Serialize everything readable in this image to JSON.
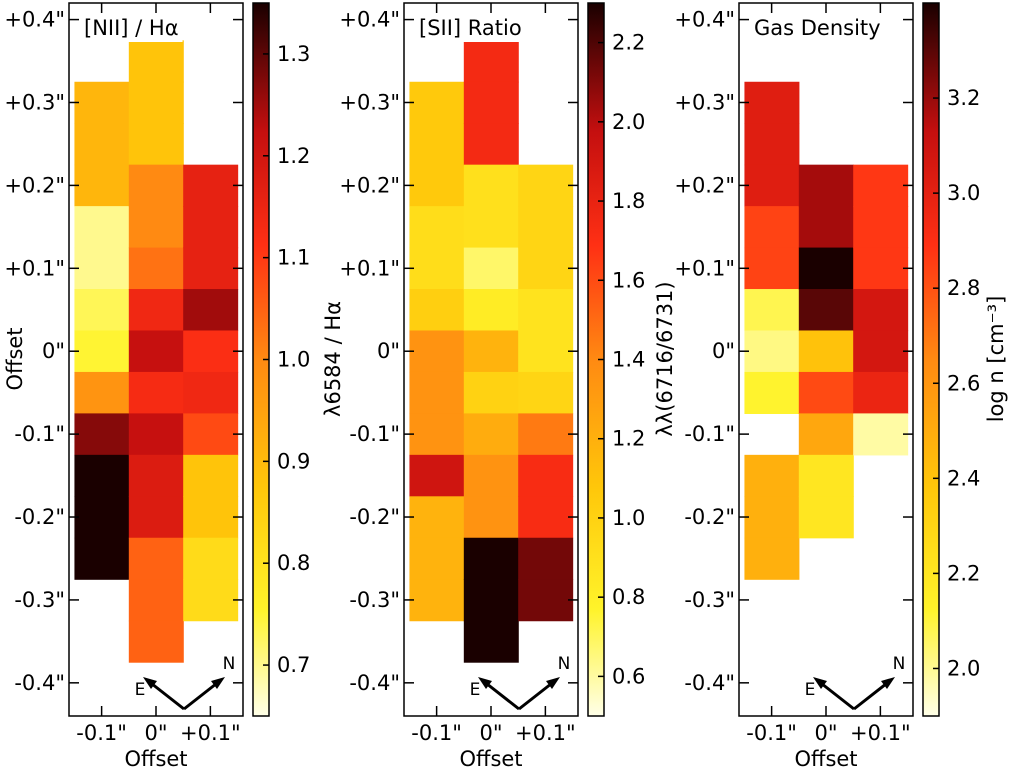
{
  "chart_data": [
    {
      "type": "heatmap",
      "title": "[NII] / Hα",
      "xlabel": "Offset",
      "ylabel": "Offset",
      "x_ticks": [
        "-0.1\"",
        "0\"",
        "+0.1\""
      ],
      "y_ticks": [
        "+0.4\"",
        "+0.3\"",
        "+0.2\"",
        "+0.1\"",
        "0\"",
        "-0.1\"",
        "-0.2\"",
        "-0.3\"",
        "-0.4\""
      ],
      "xlim": [
        -0.16,
        0.16
      ],
      "ylim": [
        -0.44,
        0.42
      ],
      "cell_width": 0.1,
      "cell_height": 0.05,
      "columns": [
        {
          "x": -0.1,
          "cells": [
            {
              "y_top": 0.325,
              "value": 0.91
            },
            {
              "y_top": 0.275,
              "value": 0.91
            },
            {
              "y_top": 0.225,
              "value": 0.91
            },
            {
              "y_top": 0.175,
              "value": 0.7
            },
            {
              "y_top": 0.125,
              "value": 0.7
            },
            {
              "y_top": 0.075,
              "value": 0.73
            },
            {
              "y_top": 0.025,
              "value": 0.75
            },
            {
              "y_top": -0.025,
              "value": 0.98
            },
            {
              "y_top": -0.075,
              "value": 1.27
            },
            {
              "y_top": -0.125,
              "value": 1.36
            },
            {
              "y_top": -0.175,
              "value": 1.36
            },
            {
              "y_top": -0.225,
              "value": 1.36
            }
          ]
        },
        {
          "x": 0.0,
          "cells": [
            {
              "y_top": 0.375,
              "value": 0.88
            },
            {
              "y_top": 0.325,
              "value": 0.88
            },
            {
              "y_top": 0.275,
              "value": 0.88
            },
            {
              "y_top": 0.225,
              "value": 1.0
            },
            {
              "y_top": 0.175,
              "value": 1.0
            },
            {
              "y_top": 0.125,
              "value": 1.03
            },
            {
              "y_top": 0.075,
              "value": 1.14
            },
            {
              "y_top": 0.025,
              "value": 1.22
            },
            {
              "y_top": -0.025,
              "value": 1.13
            },
            {
              "y_top": -0.075,
              "value": 1.22
            },
            {
              "y_top": -0.125,
              "value": 1.18
            },
            {
              "y_top": -0.175,
              "value": 1.18
            },
            {
              "y_top": -0.225,
              "value": 1.05
            },
            {
              "y_top": -0.275,
              "value": 1.05
            },
            {
              "y_top": -0.325,
              "value": 1.05
            }
          ]
        },
        {
          "x": 0.1,
          "cells": [
            {
              "y_top": 0.225,
              "value": 1.16
            },
            {
              "y_top": 0.175,
              "value": 1.16
            },
            {
              "y_top": 0.125,
              "value": 1.16
            },
            {
              "y_top": 0.075,
              "value": 1.25
            },
            {
              "y_top": 0.025,
              "value": 1.12
            },
            {
              "y_top": -0.025,
              "value": 1.14
            },
            {
              "y_top": -0.075,
              "value": 1.08
            },
            {
              "y_top": -0.125,
              "value": 0.88
            },
            {
              "y_top": -0.175,
              "value": 0.88
            },
            {
              "y_top": -0.225,
              "value": 0.82
            },
            {
              "y_top": -0.275,
              "value": 0.82
            }
          ]
        }
      ],
      "colorbar": {
        "label": "λ6584 / Hα",
        "range": [
          0.65,
          1.35
        ],
        "ticks": [
          "0.7",
          "0.8",
          "0.9",
          "1.0",
          "1.1",
          "1.2",
          "1.3"
        ]
      },
      "compass": {
        "east": "E",
        "north": "N"
      }
    },
    {
      "type": "heatmap",
      "title": "[SII] Ratio",
      "xlabel": "Offset",
      "ylabel": "",
      "x_ticks": [
        "-0.1\"",
        "0\"",
        "+0.1\""
      ],
      "y_ticks": [
        "+0.4\"",
        "+0.3\"",
        "+0.2\"",
        "+0.1\"",
        "0\"",
        "-0.1\"",
        "-0.2\"",
        "-0.3\"",
        "-0.4\""
      ],
      "xlim": [
        -0.16,
        0.16
      ],
      "ylim": [
        -0.44,
        0.42
      ],
      "cell_width": 0.1,
      "cell_height": 0.05,
      "columns": [
        {
          "x": -0.1,
          "cells": [
            {
              "y_top": 0.325,
              "value": 1.06
            },
            {
              "y_top": 0.275,
              "value": 1.06
            },
            {
              "y_top": 0.225,
              "value": 1.06
            },
            {
              "y_top": 0.175,
              "value": 0.92
            },
            {
              "y_top": 0.125,
              "value": 0.92
            },
            {
              "y_top": 0.075,
              "value": 1.02
            },
            {
              "y_top": 0.025,
              "value": 1.35
            },
            {
              "y_top": -0.025,
              "value": 1.35
            },
            {
              "y_top": -0.075,
              "value": 1.35
            },
            {
              "y_top": -0.125,
              "value": 1.92
            },
            {
              "y_top": -0.175,
              "value": 1.18
            },
            {
              "y_top": -0.225,
              "value": 1.18
            },
            {
              "y_top": -0.275,
              "value": 1.18
            }
          ]
        },
        {
          "x": 0.0,
          "cells": [
            {
              "y_top": 0.375,
              "value": 1.74
            },
            {
              "y_top": 0.325,
              "value": 1.74
            },
            {
              "y_top": 0.275,
              "value": 1.74
            },
            {
              "y_top": 0.225,
              "value": 0.9
            },
            {
              "y_top": 0.175,
              "value": 0.9
            },
            {
              "y_top": 0.125,
              "value": 0.68
            },
            {
              "y_top": 0.075,
              "value": 0.82
            },
            {
              "y_top": 0.025,
              "value": 1.18
            },
            {
              "y_top": -0.025,
              "value": 1.0
            },
            {
              "y_top": -0.075,
              "value": 1.22
            },
            {
              "y_top": -0.125,
              "value": 1.35
            },
            {
              "y_top": -0.175,
              "value": 1.35
            },
            {
              "y_top": -0.225,
              "value": 2.3
            },
            {
              "y_top": -0.275,
              "value": 2.3
            },
            {
              "y_top": -0.325,
              "value": 2.3
            }
          ]
        },
        {
          "x": 0.1,
          "cells": [
            {
              "y_top": 0.225,
              "value": 0.98
            },
            {
              "y_top": 0.175,
              "value": 0.98
            },
            {
              "y_top": 0.125,
              "value": 0.98
            },
            {
              "y_top": 0.075,
              "value": 0.88
            },
            {
              "y_top": 0.025,
              "value": 0.88
            },
            {
              "y_top": -0.025,
              "value": 0.98
            },
            {
              "y_top": -0.075,
              "value": 1.45
            },
            {
              "y_top": -0.125,
              "value": 1.72
            },
            {
              "y_top": -0.175,
              "value": 1.72
            },
            {
              "y_top": -0.225,
              "value": 2.13
            },
            {
              "y_top": -0.275,
              "value": 2.13
            }
          ]
        }
      ],
      "colorbar": {
        "label": "λλ(6716/6731)",
        "range": [
          0.5,
          2.3
        ],
        "ticks": [
          "0.6",
          "0.8",
          "1.0",
          "1.2",
          "1.4",
          "1.6",
          "1.8",
          "2.0",
          "2.2"
        ]
      },
      "compass": {
        "east": "E",
        "north": "N"
      }
    },
    {
      "type": "heatmap",
      "title": "Gas Density",
      "xlabel": "Offset",
      "ylabel": "",
      "x_ticks": [
        "-0.1\"",
        "0\"",
        "+0.1\""
      ],
      "y_ticks": [
        "+0.4\"",
        "+0.3\"",
        "+0.2\"",
        "+0.1\"",
        "0\"",
        "-0.1\"",
        "-0.2\"",
        "-0.3\"",
        "-0.4\""
      ],
      "xlim": [
        -0.16,
        0.16
      ],
      "ylim": [
        -0.44,
        0.42
      ],
      "cell_width": 0.1,
      "cell_height": 0.05,
      "columns": [
        {
          "x": -0.1,
          "cells": [
            {
              "y_top": 0.325,
              "value": 3.02
            },
            {
              "y_top": 0.275,
              "value": 3.02
            },
            {
              "y_top": 0.225,
              "value": 3.02
            },
            {
              "y_top": 0.175,
              "value": 2.84
            },
            {
              "y_top": 0.125,
              "value": 2.84
            },
            {
              "y_top": 0.075,
              "value": 2.08
            },
            {
              "y_top": 0.025,
              "value": 2.02
            },
            {
              "y_top": -0.025,
              "value": 2.12
            },
            {
              "y_top": -0.125,
              "value": 2.48
            },
            {
              "y_top": -0.175,
              "value": 2.48
            },
            {
              "y_top": -0.225,
              "value": 2.48
            }
          ]
        },
        {
          "x": 0.0,
          "cells": [
            {
              "y_top": 0.225,
              "value": 3.18
            },
            {
              "y_top": 0.175,
              "value": 3.18
            },
            {
              "y_top": 0.125,
              "value": 3.45
            },
            {
              "y_top": 0.075,
              "value": 3.3
            },
            {
              "y_top": 0.025,
              "value": 2.4
            },
            {
              "y_top": -0.025,
              "value": 2.82
            },
            {
              "y_top": -0.075,
              "value": 2.52
            },
            {
              "y_top": -0.125,
              "value": 2.2
            },
            {
              "y_top": -0.175,
              "value": 2.2
            }
          ]
        },
        {
          "x": 0.1,
          "cells": [
            {
              "y_top": 0.225,
              "value": 2.87
            },
            {
              "y_top": 0.175,
              "value": 2.87
            },
            {
              "y_top": 0.125,
              "value": 2.87
            },
            {
              "y_top": 0.075,
              "value": 3.07
            },
            {
              "y_top": 0.025,
              "value": 3.07
            },
            {
              "y_top": -0.025,
              "value": 2.97
            },
            {
              "y_top": -0.075,
              "value": 1.98
            }
          ]
        }
      ],
      "colorbar": {
        "label": "log n [cm⁻³]",
        "range": [
          1.9,
          3.4
        ],
        "ticks": [
          "2.0",
          "2.2",
          "2.4",
          "2.6",
          "2.8",
          "3.0",
          "3.2"
        ]
      },
      "compass": {
        "east": "E",
        "north": "N"
      }
    }
  ]
}
